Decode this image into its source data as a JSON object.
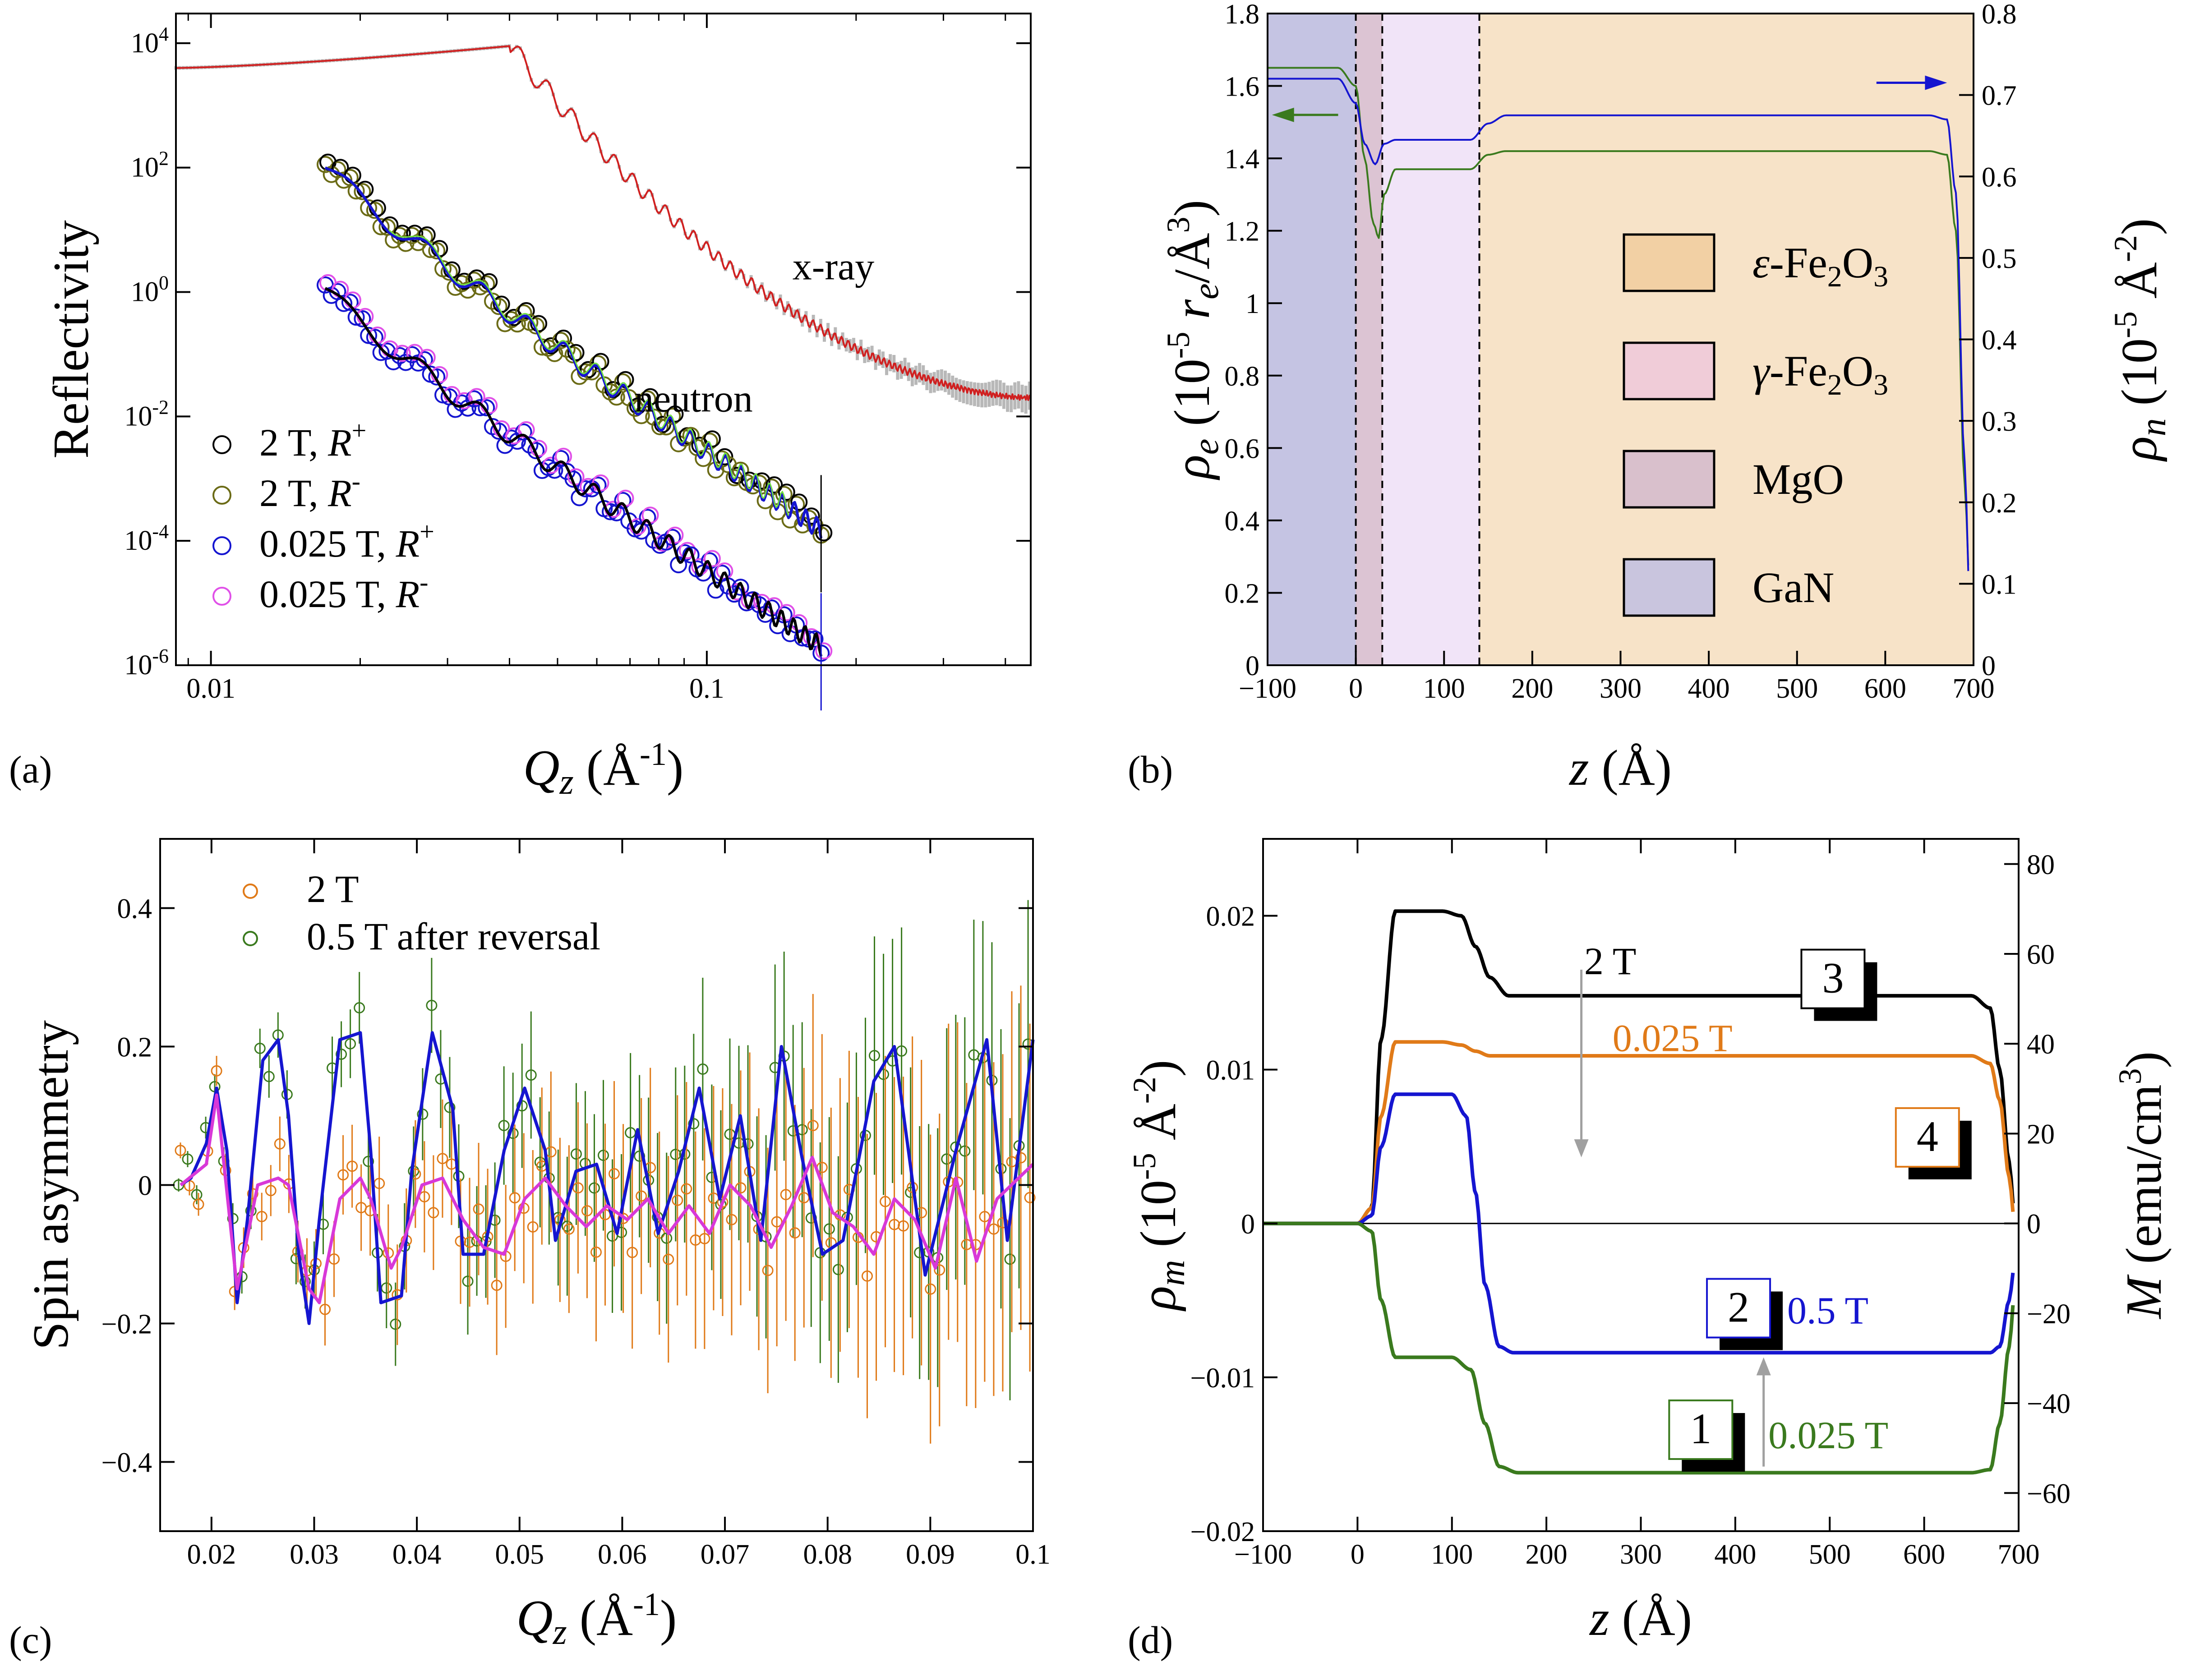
{
  "panels": {
    "a": {
      "label": "(a)"
    },
    "b": {
      "label": "(b)"
    },
    "c": {
      "label": "(c)"
    },
    "d": {
      "label": "(d)"
    }
  },
  "chart_data": [
    {
      "id": "a",
      "type": "scatter",
      "xscale": "log",
      "yscale": "log",
      "xlim": [
        0.0085,
        0.45
      ],
      "ylim": [
        1e-06,
        30000.0
      ],
      "ylabel": "Reflectivity",
      "xlabel": "Qz (Å-1)",
      "xticks": [
        {
          "v": 0.01,
          "t": "0.01"
        },
        {
          "v": 0.1,
          "t": "0.1"
        }
      ],
      "yticks": [
        {
          "v": 10000.0,
          "b": "10",
          "e": "4"
        },
        {
          "v": 100.0,
          "b": "10",
          "e": "2"
        },
        {
          "v": 1,
          "b": "10",
          "e": "0"
        },
        {
          "v": 0.01,
          "b": "10",
          "e": "-2"
        },
        {
          "v": 0.0001,
          "b": "10",
          "e": "-4"
        },
        {
          "v": 1e-06,
          "b": "10",
          "e": "-6"
        }
      ],
      "annotations": [
        {
          "text": "x-ray",
          "x": 0.18,
          "y": 1.6
        },
        {
          "text": "neutron",
          "x": 0.094,
          "y": 0.012
        }
      ],
      "legend": [
        {
          "name": "2 T, ",
          "r": "R",
          "sup": "+",
          "color": "#000000"
        },
        {
          "name": "2 T, ",
          "r": "R",
          "sup": "-",
          "color": "#6b6b16"
        },
        {
          "name": "0.025 T, ",
          "r": "R",
          "sup": "+",
          "color": "#1515d0"
        },
        {
          "name": "0.025 T, ",
          "r": "R",
          "sup": "-",
          "color": "#e050e8"
        }
      ],
      "series": [
        {
          "name": "x-ray",
          "color": "#b0b0b0",
          "fit": "#d02020",
          "x_start": 0.0085,
          "x_end": 0.45,
          "y_plateau": 9000,
          "q_crit": 0.04,
          "y_end": 0.02
        },
        {
          "name": "2 T neutron",
          "color": "#6b6b16",
          "fit": "#1515d0",
          "x_start": 0.017,
          "x_end": 0.17,
          "y_start": 100,
          "y_end": 0.00015
        },
        {
          "name": "0.025 T neutron",
          "color": "#1515d0",
          "fit": "#000000",
          "x_start": 0.017,
          "x_end": 0.17,
          "y_start": 1.0,
          "y_end": 2e-06
        }
      ]
    },
    {
      "id": "b",
      "type": "line",
      "xlim": [
        -100,
        700
      ],
      "ylim": [
        0,
        1.8
      ],
      "y2lim": [
        0,
        0.8
      ],
      "xlabel": "z (Å)",
      "ylabel": "ρe (10-5 re/Å3)",
      "y2label": "ρn (10-5 Å-2)",
      "xticks": [
        -100,
        0,
        100,
        200,
        300,
        400,
        500,
        600,
        700
      ],
      "yticks": [
        "0",
        "0.2",
        "0.4",
        "0.6",
        "0.8",
        "1",
        "1.2",
        "1.4",
        "1.6",
        "1.8"
      ],
      "y2ticks": [
        "0",
        "0.1",
        "0.2",
        "0.3",
        "0.4",
        "0.5",
        "0.6",
        "0.7",
        "0.8"
      ],
      "layers": [
        {
          "name": "GaN",
          "from": -100,
          "to": 0,
          "color": "#c5c4e3"
        },
        {
          "name": "MgO",
          "from": 0,
          "to": 30,
          "color": "#dcc4d3"
        },
        {
          "name": "γ-Fe2O3",
          "from": 30,
          "to": 140,
          "color": "#f1e4f8"
        },
        {
          "name": "ε-Fe2O3",
          "from": 140,
          "to": 700,
          "color": "#f7e3c8"
        }
      ],
      "legend": [
        {
          "pre": "ε",
          "main": "-Fe",
          "sub1": "2",
          "mid": "O",
          "sub2": "3",
          "color": "#f2d0a4"
        },
        {
          "pre": "γ",
          "main": "-Fe",
          "sub1": "2",
          "mid": "O",
          "sub2": "3",
          "color": "#f0ccd8"
        },
        {
          "pre": "",
          "main": "MgO",
          "sub1": "",
          "mid": "",
          "sub2": "",
          "color": "#d9c0cc"
        },
        {
          "pre": "",
          "main": "GaN",
          "sub1": "",
          "mid": "",
          "sub2": "",
          "color": "#c9c5de"
        }
      ],
      "series": [
        {
          "name": "ρe",
          "axis": "left",
          "color": "#3a7a1e",
          "x": [
            -100,
            -20,
            0,
            10,
            20,
            26,
            32,
            45,
            130,
            150,
            170,
            650,
            670,
            680,
            690,
            695
          ],
          "y": [
            1.65,
            1.65,
            1.6,
            1.4,
            1.22,
            1.18,
            1.3,
            1.37,
            1.37,
            1.41,
            1.42,
            1.42,
            1.41,
            1.2,
            0.5,
            0.25
          ]
        },
        {
          "name": "ρn",
          "axis": "right",
          "color": "#1515d0",
          "x": [
            -100,
            -20,
            0,
            10,
            22,
            32,
            45,
            130,
            150,
            170,
            650,
            670,
            680,
            690,
            695
          ],
          "y": [
            0.72,
            0.72,
            0.69,
            0.64,
            0.615,
            0.64,
            0.645,
            0.645,
            0.665,
            0.675,
            0.675,
            0.67,
            0.58,
            0.25,
            0.1
          ]
        }
      ]
    },
    {
      "id": "c",
      "type": "line",
      "xlim": [
        0.015,
        0.1
      ],
      "ylim": [
        -0.5,
        0.5
      ],
      "xlabel": "Qz (Å-1)",
      "ylabel": "Spin asymmetry",
      "xticks": [
        "0.02",
        "0.03",
        "0.04",
        "0.05",
        "0.06",
        "0.07",
        "0.08",
        "0.09",
        "0.1"
      ],
      "yticks": [
        "−0.4",
        "−0.2",
        "0",
        "0.2",
        "0.4"
      ],
      "legend": [
        {
          "name": "2 T",
          "color": "#e07a18"
        },
        {
          "name": "0.5 T after reversal",
          "color": "#3a7a1e"
        }
      ],
      "series": [
        {
          "name": "0.5 T fit",
          "color": "#1515d0",
          "x": [
            0.017,
            0.018,
            0.0195,
            0.0205,
            0.0215,
            0.0225,
            0.0235,
            0.025,
            0.0265,
            0.0275,
            0.0285,
            0.0295,
            0.0305,
            0.0325,
            0.0345,
            0.0355,
            0.0365,
            0.0385,
            0.0395,
            0.0415,
            0.0435,
            0.0445,
            0.0465,
            0.0485,
            0.0505,
            0.0525,
            0.0535,
            0.0555,
            0.0575,
            0.0595,
            0.0615,
            0.0635,
            0.0655,
            0.0675,
            0.0695,
            0.0715,
            0.0735,
            0.0755,
            0.0775,
            0.0795,
            0.0815,
            0.0845,
            0.0865,
            0.0895,
            0.0925,
            0.0955,
            0.0975,
            0.1
          ],
          "y": [
            0,
            0.01,
            0.06,
            0.14,
            0.05,
            -0.17,
            -0.05,
            0.18,
            0.21,
            0.1,
            -0.1,
            -0.2,
            -0.05,
            0.21,
            0.22,
            0.05,
            -0.17,
            -0.16,
            0.02,
            0.22,
            0.11,
            -0.1,
            -0.1,
            0.05,
            0.14,
            0.05,
            -0.08,
            0.02,
            0.03,
            -0.07,
            0.08,
            -0.07,
            0.02,
            0.14,
            -0.02,
            0.1,
            -0.08,
            0.2,
            0.04,
            -0.1,
            -0.08,
            0.15,
            0.2,
            -0.13,
            0.05,
            0.21,
            -0.08,
            0.21
          ]
        },
        {
          "name": "2 T fit",
          "color": "#d838d8",
          "x": [
            0.017,
            0.0195,
            0.0205,
            0.0225,
            0.0245,
            0.0265,
            0.0275,
            0.0295,
            0.0305,
            0.0325,
            0.0345,
            0.0355,
            0.0375,
            0.0385,
            0.0405,
            0.0425,
            0.0445,
            0.0465,
            0.0485,
            0.0505,
            0.0525,
            0.0545,
            0.0565,
            0.0585,
            0.0605,
            0.0625,
            0.0645,
            0.0665,
            0.0685,
            0.0705,
            0.0725,
            0.0745,
            0.0765,
            0.0785,
            0.0805,
            0.0825,
            0.0845,
            0.0865,
            0.0885,
            0.0905,
            0.0925,
            0.0945,
            0.0965,
            0.1
          ],
          "y": [
            0,
            0.03,
            0.13,
            -0.15,
            0.0,
            0.01,
            0.0,
            -0.15,
            -0.17,
            -0.02,
            0.01,
            -0.02,
            -0.12,
            -0.09,
            0.0,
            0.01,
            -0.05,
            -0.09,
            -0.1,
            -0.02,
            0.01,
            -0.03,
            -0.06,
            -0.03,
            -0.05,
            -0.02,
            -0.07,
            -0.03,
            -0.07,
            0.0,
            -0.03,
            -0.09,
            -0.03,
            0.04,
            -0.04,
            -0.06,
            -0.1,
            -0.02,
            -0.05,
            -0.12,
            0.01,
            -0.11,
            -0.02,
            0.03
          ]
        }
      ]
    },
    {
      "id": "d",
      "type": "line",
      "xlim": [
        -100,
        700
      ],
      "ylim": [
        -0.02,
        0.025
      ],
      "y2lim": [
        -68.5,
        85.6
      ],
      "xlabel": "z (Å)",
      "ylabel": "ρm (10-5 Å-2)",
      "y2label": "M (emu/cm3)",
      "xticks": [
        "−100",
        "0",
        "100",
        "200",
        "300",
        "400",
        "500",
        "600",
        "700"
      ],
      "yticks": [
        {
          "v": -0.02,
          "t": "−0.02"
        },
        {
          "v": -0.01,
          "t": "−0.01"
        },
        {
          "v": 0,
          "t": "0"
        },
        {
          "v": 0.01,
          "t": "0.01"
        },
        {
          "v": 0.02,
          "t": "0.02"
        }
      ],
      "y2ticks": [
        {
          "v": -60,
          "t": "−60"
        },
        {
          "v": -40,
          "t": "−40"
        },
        {
          "v": -20,
          "t": "−20"
        },
        {
          "v": 0,
          "t": "0"
        },
        {
          "v": 20,
          "t": "20"
        },
        {
          "v": 40,
          "t": "40"
        },
        {
          "v": 60,
          "t": "60"
        },
        {
          "v": 80,
          "t": "80"
        }
      ],
      "series": [
        {
          "name": "2 T",
          "color": "#000000",
          "x": [
            -100,
            0,
            15,
            25,
            40,
            90,
            110,
            125,
            140,
            160,
            650,
            670,
            680,
            690,
            695
          ],
          "y": [
            0,
            0,
            0.001,
            0.012,
            0.0203,
            0.0203,
            0.02,
            0.018,
            0.016,
            0.0148,
            0.0148,
            0.014,
            0.01,
            0.004,
            0.001
          ]
        },
        {
          "name": "0.025 T (4)",
          "color": "#e07a18",
          "x": [
            -100,
            0,
            15,
            25,
            40,
            90,
            110,
            125,
            140,
            160,
            650,
            670,
            680,
            690,
            695
          ],
          "y": [
            0,
            0,
            0.001,
            0.007,
            0.0118,
            0.0118,
            0.0116,
            0.0112,
            0.0109,
            0.0109,
            0.0109,
            0.0104,
            0.008,
            0.003,
            0.0005
          ]
        },
        {
          "name": "0.5 T",
          "color": "#1515d0",
          "x": [
            -100,
            0,
            15,
            25,
            40,
            100,
            115,
            125,
            135,
            150,
            165,
            650,
            670,
            680,
            690,
            695
          ],
          "y": [
            0,
            0,
            0.0005,
            0.005,
            0.0084,
            0.0084,
            0.007,
            0.002,
            -0.004,
            -0.008,
            -0.0084,
            -0.0084,
            -0.0084,
            -0.008,
            -0.005,
            -0.003
          ]
        },
        {
          "name": "0.025 T (1)",
          "color": "#3a7a1e",
          "x": [
            -100,
            0,
            15,
            25,
            40,
            100,
            120,
            135,
            150,
            170,
            650,
            670,
            680,
            690,
            695
          ],
          "y": [
            0,
            0,
            -0.0005,
            -0.005,
            -0.0087,
            -0.0087,
            -0.0095,
            -0.013,
            -0.0158,
            -0.0162,
            -0.0162,
            -0.016,
            -0.013,
            -0.008,
            -0.005
          ]
        }
      ],
      "labels": [
        {
          "text": "2 T",
          "color": "#000000",
          "x": 240,
          "y": 0.0162
        },
        {
          "text": "0.025 T",
          "color": "#e07a18",
          "x": 270,
          "y": 0.0112
        },
        {
          "text": "0.5 T",
          "color": "#1515d0",
          "x": 455,
          "y": -0.0065
        },
        {
          "text": "0.025 T",
          "color": "#3a7a1e",
          "x": 435,
          "y": -0.0146
        }
      ],
      "boxes": [
        {
          "num": "3",
          "color": "#000000",
          "x": 470,
          "y": 0.0178
        },
        {
          "num": "4",
          "color": "#e07a18",
          "x": 570,
          "y": 0.0075
        },
        {
          "num": "2",
          "color": "#1515d0",
          "x": 370,
          "y": -0.0036
        },
        {
          "num": "1",
          "color": "#3a7a1e",
          "x": 330,
          "y": -0.0115
        }
      ],
      "arrows": [
        {
          "x": 237,
          "from": 0.0165,
          "to": 0.0043
        },
        {
          "x": 430,
          "from": -0.0158,
          "to": -0.0087
        }
      ]
    }
  ]
}
